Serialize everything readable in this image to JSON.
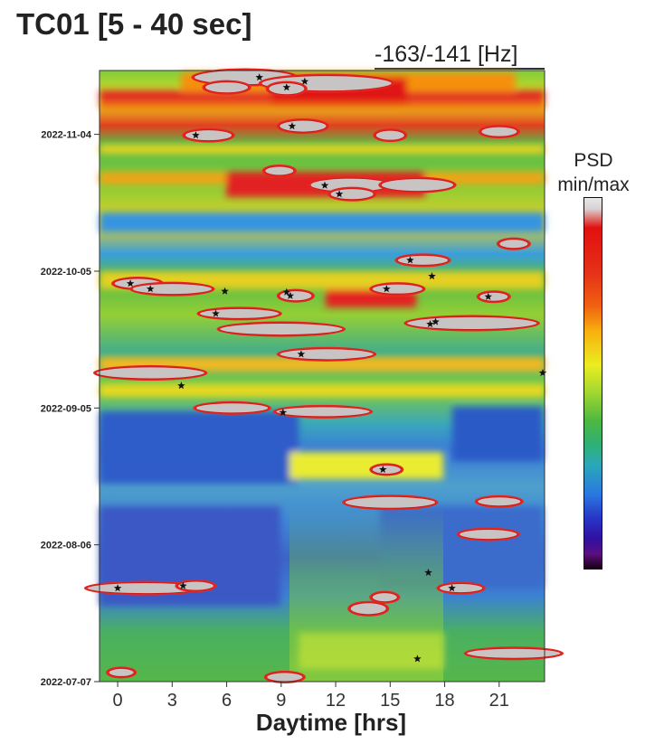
{
  "chart_data": {
    "type": "heatmap",
    "title": "TC01 [5 - 40 sec]",
    "subtitle": "-163/-141 [Hz]",
    "xlabel": "Daytime [hrs]",
    "ylabel": "",
    "xlim": [
      -1,
      23.5
    ],
    "x_ticks": [
      0,
      3,
      6,
      9,
      12,
      15,
      18,
      21
    ],
    "y_range": [
      "2022-07-07",
      "2022-11-18"
    ],
    "y_ticks": [
      {
        "label": "2022-11-04",
        "day": 120
      },
      {
        "label": "2022-10-05",
        "day": 90
      },
      {
        "label": "2022-09-05",
        "day": 60
      },
      {
        "label": "2022-08-06",
        "day": 30
      },
      {
        "label": "2022-07-07",
        "day": 0
      }
    ],
    "colorbar": {
      "label": "PSD\nmin/max",
      "colors": [
        "#e8e8e8",
        "#e01010",
        "#f07010",
        "#ecec20",
        "#4eb840",
        "#2aa8b8",
        "#2a78e0",
        "#3010a0",
        "#1a0010"
      ]
    },
    "markers": [
      {
        "hour": 7.8,
        "day": 132.5
      },
      {
        "hour": 10.3,
        "day": 131.6
      },
      {
        "hour": 9.3,
        "day": 130.3
      },
      {
        "hour": 9.6,
        "day": 121.8
      },
      {
        "hour": 4.3,
        "day": 119.8
      },
      {
        "hour": 11.4,
        "day": 108.8
      },
      {
        "hour": 12.2,
        "day": 106.9
      },
      {
        "hour": 16.1,
        "day": 92.4
      },
      {
        "hour": 17.3,
        "day": 88.9
      },
      {
        "hour": 0.7,
        "day": 87.3
      },
      {
        "hour": 1.8,
        "day": 86.1
      },
      {
        "hour": 5.9,
        "day": 85.6
      },
      {
        "hour": 9.3,
        "day": 85.4
      },
      {
        "hour": 14.8,
        "day": 86.1
      },
      {
        "hour": 9.5,
        "day": 84.6
      },
      {
        "hour": 20.4,
        "day": 84.4
      },
      {
        "hour": 5.4,
        "day": 80.7
      },
      {
        "hour": 17.5,
        "day": 78.9
      },
      {
        "hour": 17.2,
        "day": 78.4
      },
      {
        "hour": 10.1,
        "day": 71.8
      },
      {
        "hour": 23.4,
        "day": 67.7
      },
      {
        "hour": 3.5,
        "day": 64.9
      },
      {
        "hour": 9.1,
        "day": 59.0
      },
      {
        "hour": 14.6,
        "day": 46.5
      },
      {
        "hour": 0.0,
        "day": 20.5
      },
      {
        "hour": 3.6,
        "day": 21.0
      },
      {
        "hour": 17.1,
        "day": 23.9
      },
      {
        "hour": 18.4,
        "day": 20.5
      },
      {
        "hour": 16.5,
        "day": 5.0
      }
    ]
  }
}
